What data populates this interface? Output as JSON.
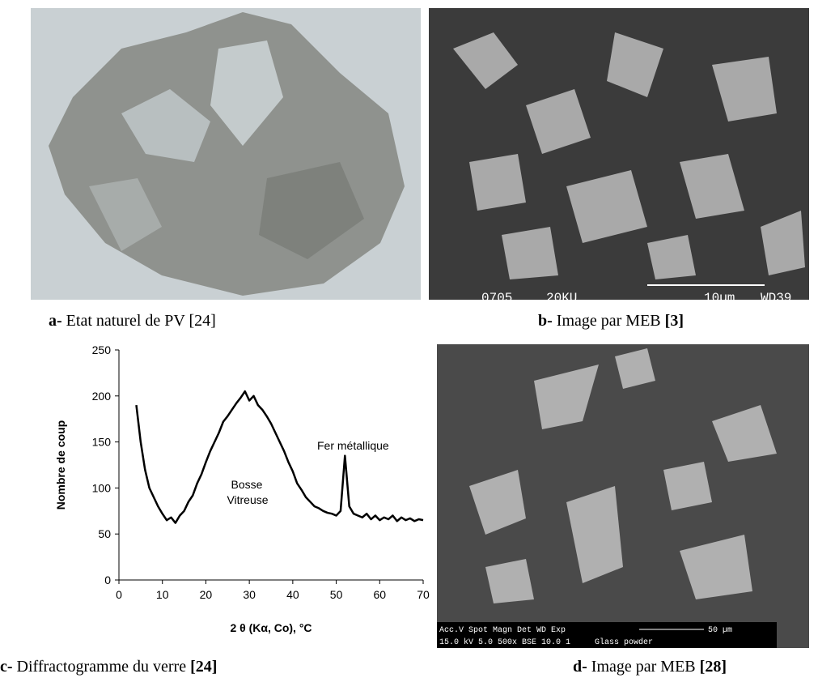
{
  "panels": [
    {
      "label": "a-",
      "text": "Etat naturel de PV  [24]",
      "ref": ""
    },
    {
      "label": "b-",
      "text": "Image par MEB ",
      "ref": "[3]",
      "overlay": [
        "0705",
        "20KU",
        "10µm",
        "WD39"
      ]
    },
    {
      "label": "c-",
      "text": "Diffractogramme du verre ",
      "ref": "[24]"
    },
    {
      "label": "d-",
      "text": "Image par MEB ",
      "ref": "[28]",
      "overlay": [
        "Acc.V  Spot Magn   Det  WD  Exp",
        "15.0 kV 5.0  500x   BSE 10.0  1",
        "50 µm",
        "Glass powder"
      ]
    }
  ],
  "chart_data": {
    "type": "line",
    "color": "#000000",
    "ylabel": "Nombre de coup",
    "xlabel": "2 θ (Kα, Co), °C",
    "annotations": [
      "Bosse",
      "Vitreuse",
      "Fer métallique"
    ],
    "xlim": [
      0,
      70
    ],
    "ylim": [
      0,
      250
    ],
    "xticks": [
      0,
      10,
      20,
      30,
      40,
      50,
      60,
      70
    ],
    "yticks": [
      0,
      50,
      100,
      150,
      200,
      250
    ],
    "x": [
      4,
      5,
      6,
      7,
      8,
      9,
      10,
      11,
      12,
      13,
      14,
      15,
      16,
      17,
      18,
      19,
      20,
      21,
      22,
      23,
      24,
      25,
      26,
      27,
      28,
      29,
      30,
      31,
      32,
      33,
      34,
      35,
      36,
      37,
      38,
      39,
      40,
      41,
      42,
      43,
      44,
      45,
      46,
      47,
      48,
      49,
      50,
      51,
      52,
      53,
      54,
      55,
      56,
      57,
      58,
      59,
      60,
      61,
      62,
      63,
      64,
      65,
      66,
      67,
      68,
      69,
      70
    ],
    "values": [
      190,
      150,
      120,
      100,
      90,
      80,
      72,
      65,
      68,
      62,
      70,
      75,
      85,
      92,
      105,
      115,
      128,
      140,
      150,
      160,
      172,
      178,
      185,
      192,
      198,
      205,
      195,
      200,
      190,
      185,
      178,
      170,
      160,
      150,
      140,
      128,
      118,
      105,
      98,
      90,
      85,
      80,
      78,
      75,
      73,
      72,
      70,
      75,
      135,
      80,
      72,
      70,
      68,
      72,
      66,
      70,
      65,
      68,
      66,
      70,
      64,
      68,
      65,
      67,
      64,
      66,
      65
    ]
  }
}
